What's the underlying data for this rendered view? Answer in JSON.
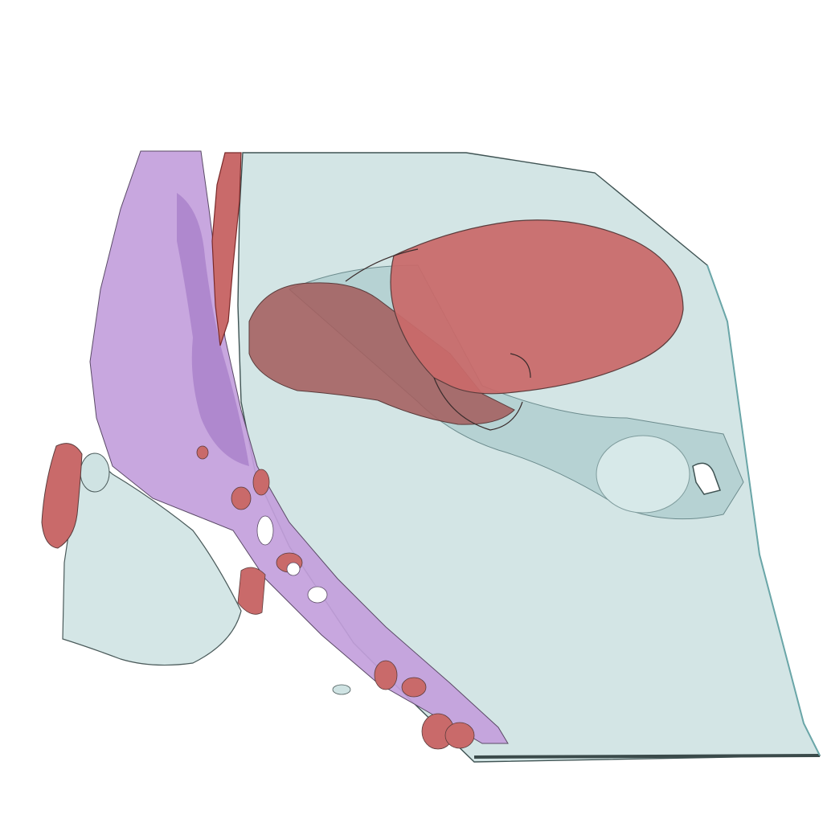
{
  "scene": {
    "background": "#ffffff",
    "colors": {
      "tissue_light": "#cfe3e3",
      "tissue_dark": "#9fc2c4",
      "membrane_purple": "#c39fdc",
      "membrane_purple_dark": "#9a6fc0",
      "lesion_red": "#c96a6a",
      "lesion_red_dark": "#a74a4a",
      "edge": "#4a5a5a"
    }
  }
}
